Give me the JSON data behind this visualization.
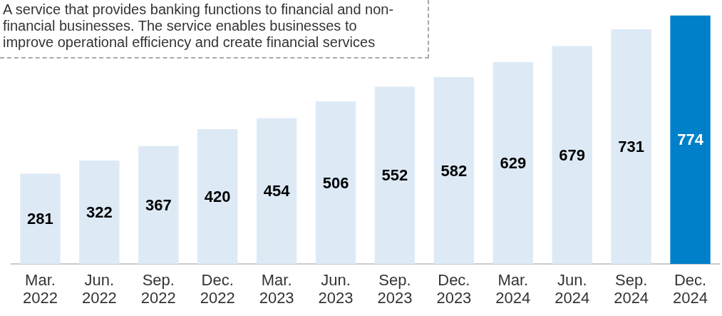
{
  "chart_data": {
    "type": "bar",
    "data_labels": true,
    "categories": [
      "Mar.\n2022",
      "Jun.\n2022",
      "Sep.\n2022",
      "Dec.\n2022",
      "Mar.\n2023",
      "Jun.\n2023",
      "Sep.\n2023",
      "Dec.\n2023",
      "Mar.\n2024",
      "Jun.\n2024",
      "Sep.\n2024",
      "Dec.\n2024"
    ],
    "values": [
      281,
      322,
      367,
      420,
      454,
      506,
      552,
      582,
      629,
      679,
      731,
      774
    ],
    "colors": [
      "#ddeaf6",
      "#ddeaf6",
      "#ddeaf6",
      "#ddeaf6",
      "#ddeaf6",
      "#ddeaf6",
      "#ddeaf6",
      "#ddeaf6",
      "#ddeaf6",
      "#ddeaf6",
      "#ddeaf6",
      "#0080c8"
    ],
    "annotations": [
      "A service that provides banking functions to financial and non-financial businesses. The service enables businesses to improve operational efficiency and create financial services"
    ],
    "grid": false
  }
}
